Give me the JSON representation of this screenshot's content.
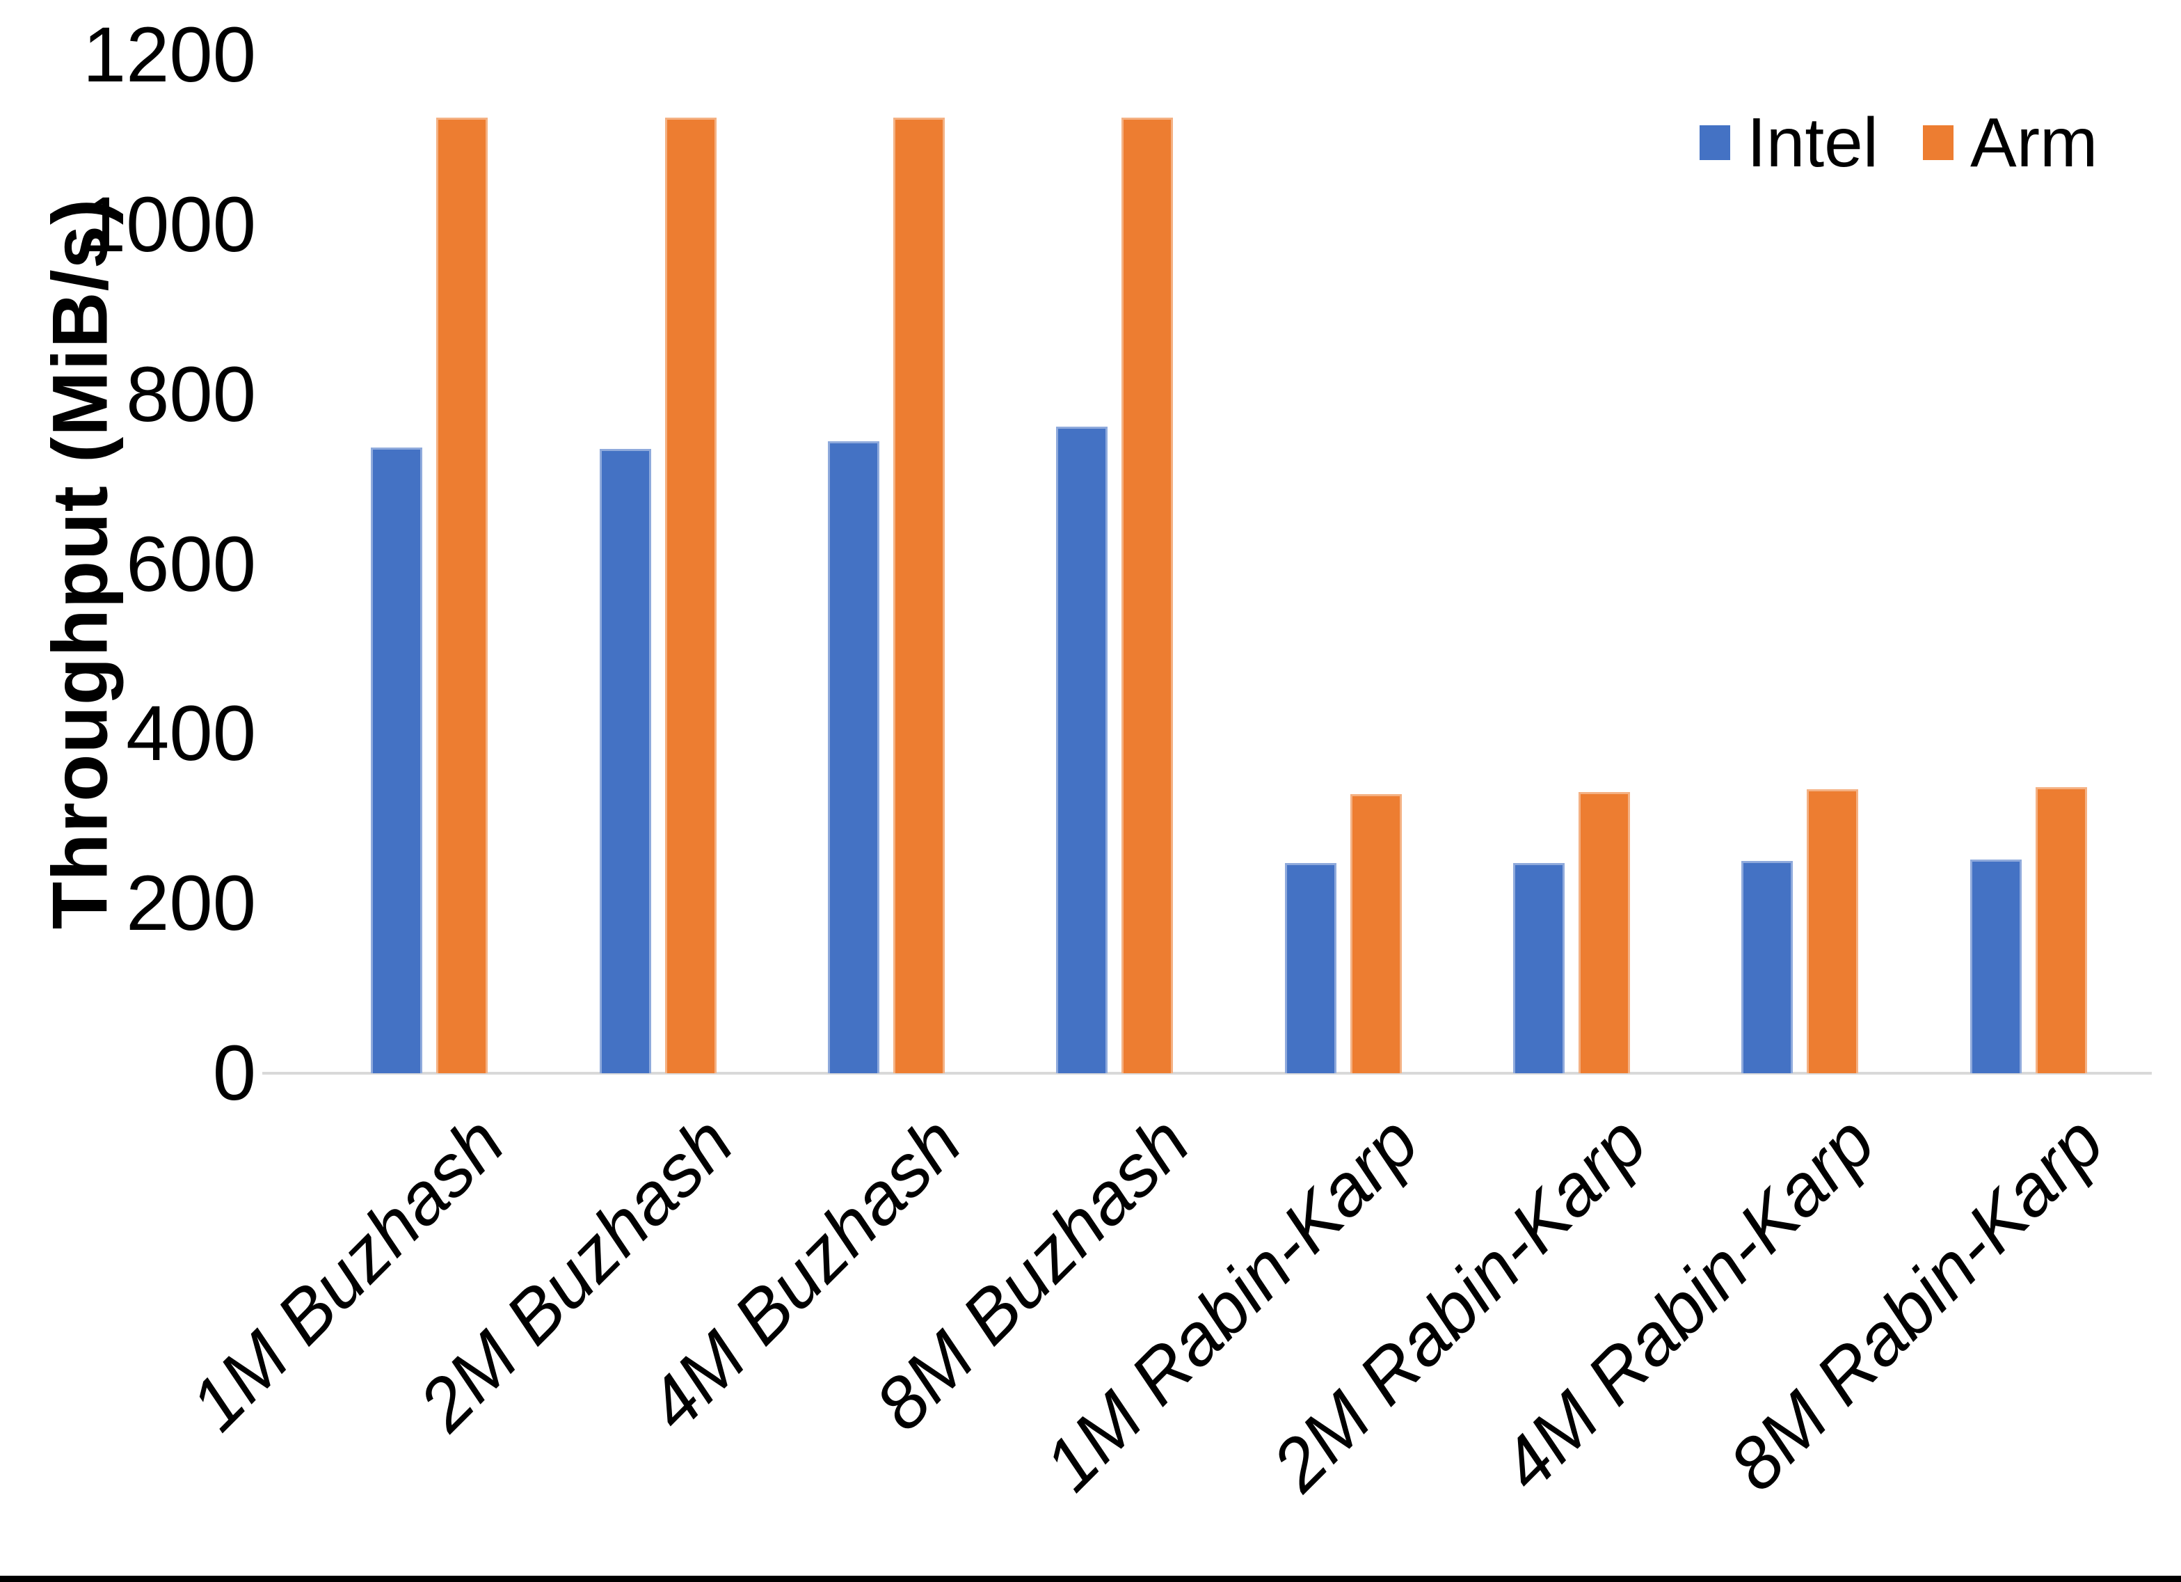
{
  "chart_data": {
    "type": "bar",
    "title": "",
    "ylabel": "Throughput (MiB/s)",
    "xlabel": "",
    "categories": [
      "1M Buzhash",
      "2M Buzhash",
      "4M Buzhash",
      "8M Buzhash",
      "1M Rabin-Karp",
      "2M Rabin-Karp",
      "4M Rabin-Karp",
      "8M Rabin-Karp"
    ],
    "series": [
      {
        "name": "Intel",
        "color": "#4472C4",
        "border_color": "#8faadc",
        "values": [
          737,
          736,
          745,
          762,
          248,
          248,
          250,
          252
        ]
      },
      {
        "name": "Arm",
        "color": "#ED7D31",
        "border_color": "#f4b183",
        "values": [
          1126,
          1126,
          1126,
          1126,
          329,
          331,
          335,
          337
        ]
      }
    ],
    "ylim": [
      0,
      1200
    ],
    "yticks": [
      0,
      200,
      400,
      600,
      800,
      1000,
      1200
    ],
    "grid": false,
    "legend_position": "top-right",
    "axis_line_color": "#d9d9d9",
    "text_color": "#000000"
  }
}
